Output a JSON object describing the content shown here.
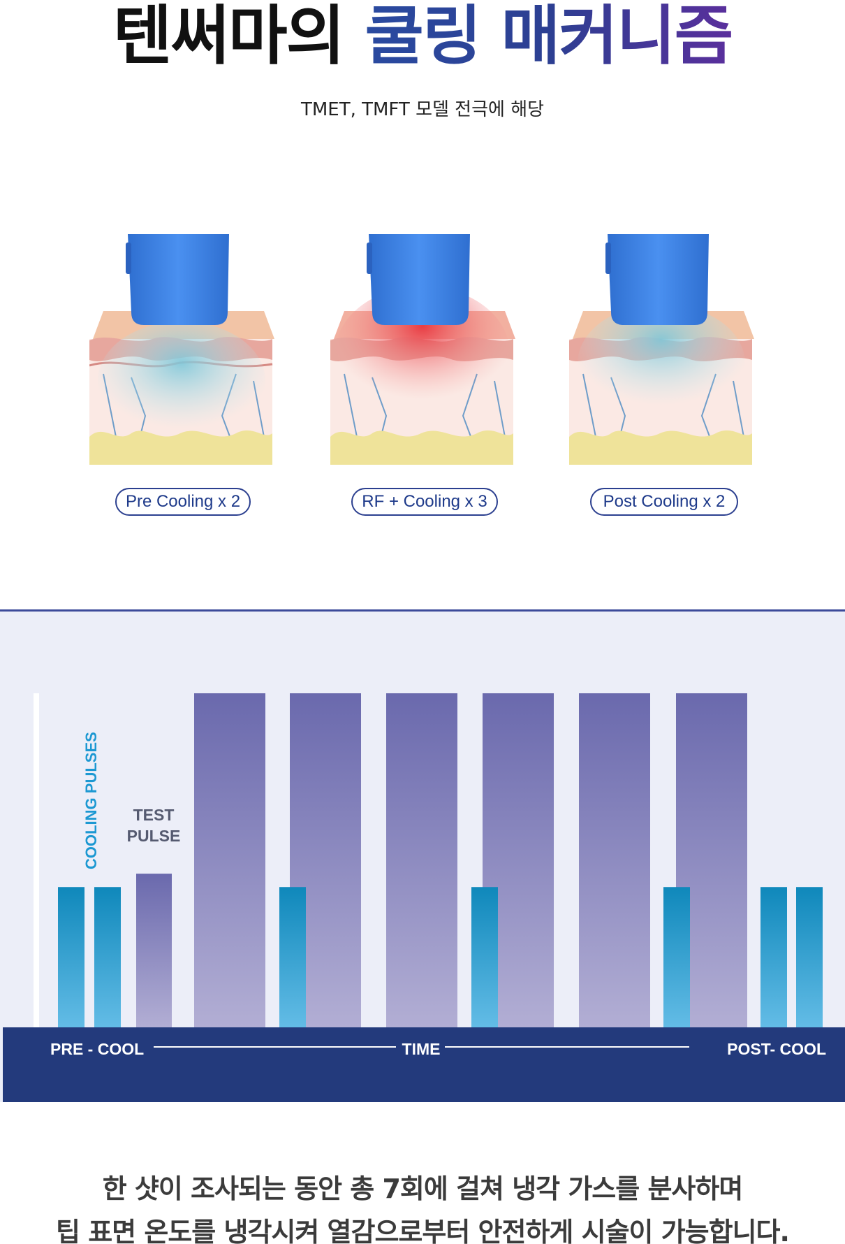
{
  "header": {
    "title_dark": "텐써마의",
    "title_accent": "쿨링 매커니즘",
    "subtitle": "TMET, TMFT 모델 전극에 해당"
  },
  "stages": [
    {
      "label": "Pre Cooling x 2",
      "glow": "blue"
    },
    {
      "label": "RF + Cooling x 3",
      "glow": "red"
    },
    {
      "label": "Post Cooling x 2",
      "glow": "blue"
    }
  ],
  "chart_data": {
    "type": "bar",
    "title": "",
    "annotations": [
      "COOLING PULSES",
      "TEST PULSE"
    ],
    "axis": {
      "left_label": "PRE - COOL",
      "center_label": "TIME",
      "right_label": "POST- COOL"
    },
    "max": 10,
    "series": [
      {
        "name": "COOLING PULSES",
        "values": [
          4.2,
          4.2,
          4.2,
          4.2,
          4.2,
          4.2,
          4.2
        ]
      },
      {
        "name": "TEST PULSE",
        "values": [
          4.6
        ]
      },
      {
        "name": "RF",
        "values": [
          10,
          10,
          10,
          10,
          10,
          10
        ]
      }
    ],
    "colors": {
      "cooling": "#1a8ec4",
      "rf": "#6e6cb0",
      "axis_band": "#233a7c",
      "background": "#eceef8"
    }
  },
  "footer": {
    "line1": "한 샷이 조사되는 동안 총 7회에 걸쳐 냉각 가스를 분사하며",
    "line2": "팁 표면 온도를 냉각시켜 열감으로부터 안전하게 시술이 가능합니다."
  }
}
